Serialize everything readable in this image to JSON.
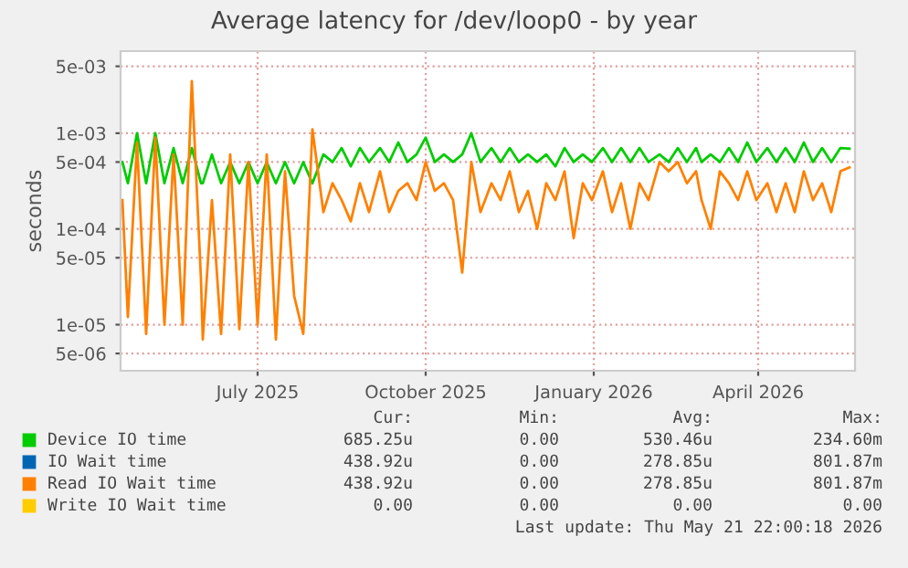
{
  "chart_data": {
    "type": "line",
    "title": "Average latency for /dev/loop0 - by year",
    "ylabel": "seconds",
    "log": "y",
    "x": [
      "2025-04-18",
      "2025-04-21",
      "2025-04-26",
      "2025-05-01",
      "2025-05-06",
      "2025-05-11",
      "2025-05-16",
      "2025-05-21",
      "2025-05-26",
      "2025-05-31",
      "2025-06-01",
      "2025-06-06",
      "2025-06-11",
      "2025-06-16",
      "2025-06-21",
      "2025-06-26",
      "2025-07-01",
      "2025-07-06",
      "2025-07-11",
      "2025-07-16",
      "2025-07-21",
      "2025-07-26",
      "2025-07-31",
      "2025-08-06",
      "2025-08-11",
      "2025-08-16",
      "2025-08-21",
      "2025-08-26",
      "2025-08-31",
      "2025-09-06",
      "2025-09-11",
      "2025-09-16",
      "2025-09-21",
      "2025-09-26",
      "2025-10-01",
      "2025-10-06",
      "2025-10-11",
      "2025-10-16",
      "2025-10-21",
      "2025-10-26",
      "2025-10-31",
      "2025-11-06",
      "2025-11-11",
      "2025-11-16",
      "2025-11-21",
      "2025-11-26",
      "2025-12-01",
      "2025-12-06",
      "2025-12-11",
      "2025-12-16",
      "2025-12-21",
      "2025-12-26",
      "2025-12-31",
      "2026-01-06",
      "2026-01-11",
      "2026-01-16",
      "2026-01-21",
      "2026-01-26",
      "2026-01-31",
      "2026-02-06",
      "2026-02-11",
      "2026-02-16",
      "2026-02-21",
      "2026-02-26",
      "2026-03-01",
      "2026-03-06",
      "2026-03-11",
      "2026-03-16",
      "2026-03-21",
      "2026-03-26",
      "2026-03-31",
      "2026-04-06",
      "2026-04-11",
      "2026-04-16",
      "2026-04-21",
      "2026-04-26",
      "2026-05-01",
      "2026-05-06",
      "2026-05-11",
      "2026-05-16",
      "2026-05-21"
    ],
    "series": [
      {
        "name": "Device IO time",
        "color": "#00cc00",
        "values": [
          0.0005,
          0.0003,
          0.001,
          0.0003,
          0.001,
          0.0003,
          0.0007,
          0.0003,
          0.0007,
          0.0003,
          0.0003,
          0.0006,
          0.0003,
          0.0005,
          0.0003,
          0.0005,
          0.0003,
          0.0005,
          0.0003,
          0.0005,
          0.0003,
          0.0005,
          0.0003,
          0.0006,
          0.0005,
          0.0007,
          0.00045,
          0.0007,
          0.0005,
          0.0007,
          0.0005,
          0.0008,
          0.0005,
          0.0006,
          0.0009,
          0.0005,
          0.0006,
          0.0005,
          0.0006,
          0.001,
          0.0005,
          0.0007,
          0.0005,
          0.0007,
          0.0005,
          0.0006,
          0.0005,
          0.0006,
          0.00045,
          0.0007,
          0.0005,
          0.0006,
          0.0005,
          0.0007,
          0.0005,
          0.0007,
          0.0005,
          0.0007,
          0.0005,
          0.0006,
          0.0005,
          0.0007,
          0.0005,
          0.0007,
          0.0005,
          0.0006,
          0.0005,
          0.0007,
          0.0005,
          0.0008,
          0.0005,
          0.0007,
          0.0005,
          0.0007,
          0.0005,
          0.0008,
          0.0005,
          0.0007,
          0.0005,
          0.0007,
          0.00069
        ]
      },
      {
        "name": "IO Wait time",
        "color": "#0066b3",
        "values": [
          null,
          null,
          null,
          null,
          null,
          null,
          null,
          null,
          null,
          null,
          null,
          null,
          null,
          null,
          null,
          null,
          null,
          null,
          null,
          null,
          null,
          null,
          null,
          null,
          null,
          null,
          null,
          null,
          null,
          null,
          null,
          null,
          null,
          null,
          null,
          null,
          null,
          null,
          null,
          null,
          null,
          null,
          null,
          null,
          null,
          null,
          null,
          null,
          null,
          null,
          null,
          null,
          null,
          null,
          null,
          null,
          null,
          null,
          null,
          null,
          null,
          null,
          null,
          null,
          null,
          null,
          null,
          null,
          null,
          null,
          null,
          null,
          null,
          null,
          null,
          null,
          null,
          null,
          null,
          null,
          null
        ]
      },
      {
        "name": "Read IO Wait time",
        "color": "#ff8000",
        "values": [
          0.0002,
          1.2e-05,
          0.0008,
          8e-06,
          0.0009,
          1e-05,
          0.0006,
          1e-05,
          0.0035,
          3e-05,
          7e-06,
          0.0002,
          8e-06,
          0.0006,
          9e-06,
          0.0005,
          1e-05,
          0.0006,
          7e-06,
          0.0004,
          2e-05,
          8e-06,
          0.0011,
          0.00015,
          0.0003,
          0.0002,
          0.00012,
          0.0003,
          0.00015,
          0.0004,
          0.00015,
          0.00025,
          0.0003,
          0.0002,
          0.0005,
          0.00025,
          0.0003,
          0.0002,
          3.5e-05,
          0.0005,
          0.00015,
          0.0003,
          0.0002,
          0.0004,
          0.00015,
          0.00025,
          0.0001,
          0.0003,
          0.0002,
          0.0004,
          8e-05,
          0.0003,
          0.0002,
          0.0004,
          0.00015,
          0.0003,
          0.0001,
          0.0003,
          0.0002,
          0.0005,
          0.0004,
          0.0005,
          0.0003,
          0.0004,
          0.0002,
          0.0001,
          0.0004,
          0.0003,
          0.0002,
          0.0004,
          0.0002,
          0.0003,
          0.00015,
          0.0003,
          0.00015,
          0.0004,
          0.0002,
          0.0003,
          0.00015,
          0.0004,
          0.00044
        ]
      },
      {
        "name": "Write IO Wait time",
        "color": "#ffcc00",
        "values": [
          null,
          null,
          null,
          null,
          null,
          null,
          null,
          null,
          null,
          null,
          null,
          null,
          null,
          null,
          null,
          null,
          null,
          null,
          null,
          null,
          null,
          null,
          null,
          null,
          null,
          null,
          null,
          null,
          null,
          null,
          null,
          null,
          null,
          null,
          null,
          null,
          null,
          null,
          null,
          null,
          null,
          null,
          null,
          null,
          null,
          null,
          null,
          null,
          null,
          null,
          null,
          null,
          null,
          null,
          null,
          null,
          null,
          null,
          null,
          null,
          null,
          null,
          null,
          null,
          null,
          null,
          null,
          null,
          null,
          null,
          null,
          null,
          null,
          null,
          null,
          null,
          null,
          null,
          null,
          null,
          null
        ]
      }
    ],
    "xlim": [
      "2025-04-17",
      "2026-05-24"
    ],
    "xticks": [
      {
        "value": "2025-07-01",
        "label": "July 2025"
      },
      {
        "value": "2025-10-01",
        "label": "October 2025"
      },
      {
        "value": "2026-01-01",
        "label": "January 2026"
      },
      {
        "value": "2026-04-01",
        "label": "April 2026"
      }
    ],
    "ylim": [
      3.3e-06,
      0.0072
    ],
    "yticks": [
      {
        "value": 5e-06,
        "label": "5e-06"
      },
      {
        "value": 1e-05,
        "label": "1e-05"
      },
      {
        "value": 5e-05,
        "label": "5e-05"
      },
      {
        "value": 0.0001,
        "label": "1e-04"
      },
      {
        "value": 0.0005,
        "label": "5e-04"
      },
      {
        "value": 0.001,
        "label": "1e-03"
      },
      {
        "value": 0.005,
        "label": "5e-03"
      }
    ],
    "grid": true,
    "legend": "bottom",
    "annotations": [
      "Cur:",
      "Min:",
      "Avg:",
      "Max:",
      "685.25u",
      "0.00",
      "530.46u",
      "234.60m",
      "438.92u",
      "0.00",
      "278.85u",
      "801.87m",
      "438.92u",
      "0.00",
      "278.85u",
      "801.87m",
      "0.00",
      "0.00",
      "0.00",
      "0.00",
      "Last update: Thu May 21 22:00:18 2026"
    ]
  }
}
